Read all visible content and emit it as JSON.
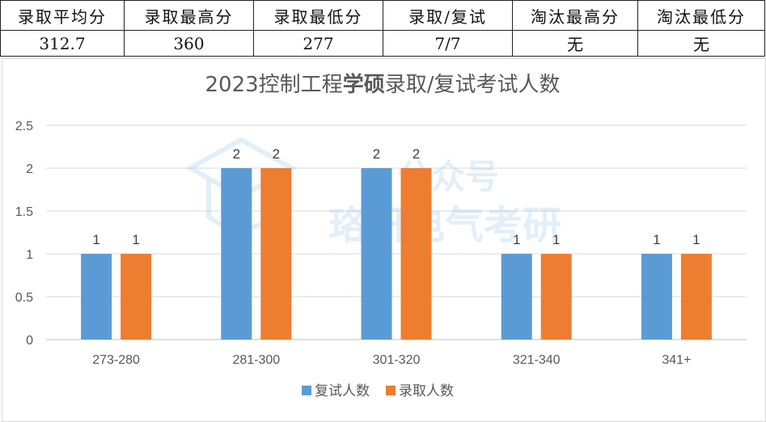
{
  "summary": {
    "headers": [
      "录取平均分",
      "录取最高分",
      "录取最低分",
      "录取/复试",
      "淘汰最高分",
      "淘汰最低分"
    ],
    "values": [
      "312.7",
      "360",
      "277",
      "7/7",
      "无",
      "无"
    ]
  },
  "watermark": {
    "line1": "公众号",
    "line2": "珞研电气考研"
  },
  "chart_data": {
    "type": "bar",
    "title": "2023控制工程学硕录取/复试考试人数",
    "title_parts": [
      {
        "text": "2023控制工程",
        "bold": false
      },
      {
        "text": "学硕",
        "bold": true
      },
      {
        "text": "录取/复试考试人数",
        "bold": false
      }
    ],
    "categories": [
      "273-280",
      "281-300",
      "301-320",
      "321-340",
      "341+"
    ],
    "series": [
      {
        "name": "复试人数",
        "color": "#5b9bd5",
        "values": [
          1,
          2,
          2,
          1,
          1
        ]
      },
      {
        "name": "录取人数",
        "color": "#ed7d31",
        "values": [
          1,
          2,
          2,
          1,
          1
        ]
      }
    ],
    "ylim": [
      0,
      2.5
    ],
    "yticks": [
      "0",
      "0.5",
      "1",
      "1.5",
      "2",
      "2.5"
    ],
    "grid": true,
    "legend_position": "bottom",
    "xlabel": "",
    "ylabel": ""
  }
}
